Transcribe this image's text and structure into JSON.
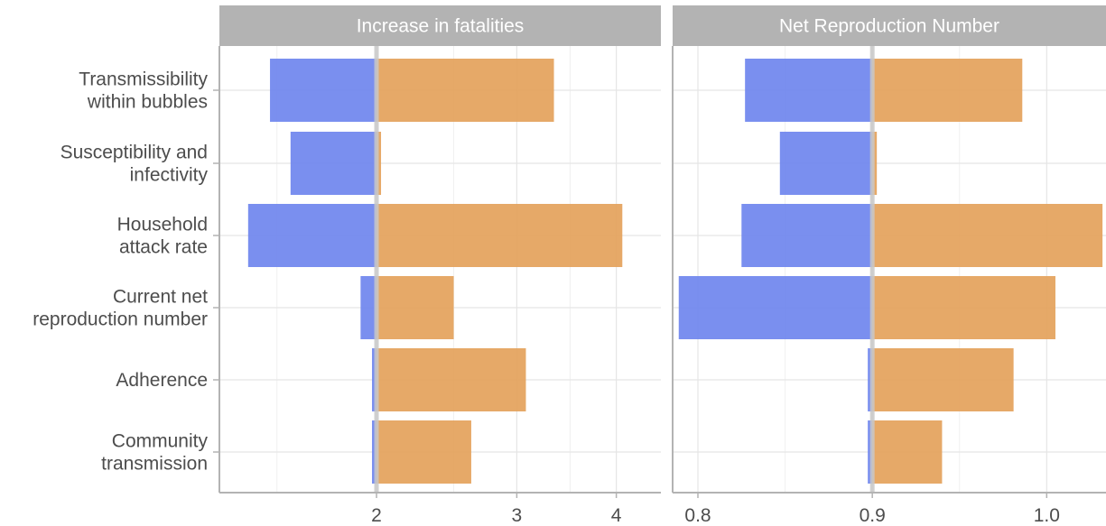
{
  "chart_data": {
    "type": "bar",
    "orientation": "horizontal",
    "grid": true,
    "legend": "none",
    "categories": [
      [
        "Transmissibility",
        "within bubbles"
      ],
      [
        "Susceptibility and",
        "infectivity"
      ],
      [
        "Household",
        "attack rate"
      ],
      [
        "Current net",
        "reproduction number"
      ],
      [
        "Adherence"
      ],
      [
        "Community",
        "transmission"
      ]
    ],
    "colors": {
      "low": "#6f86ee",
      "high": "#e4a25b",
      "strip": "#b3b3b3",
      "grid": "#e5e5e5",
      "axis": "#b3b3b3",
      "baseline": "#c8c8c8"
    },
    "panels": [
      {
        "title": "Increase in fatalities",
        "scale": "log",
        "baseline": 2,
        "xlim": [
          1.27,
          4.55
        ],
        "ticks": [
          2,
          3,
          4
        ],
        "tick_labels": [
          "2",
          "3",
          "4"
        ],
        "minor_ticks": [
          1.5,
          2.5,
          3.5
        ],
        "low": [
          1.47,
          1.56,
          1.38,
          1.91,
          1.975,
          1.975
        ],
        "high": [
          3.34,
          2.0,
          4.07,
          2.5,
          3.08,
          2.63
        ]
      },
      {
        "title": "Net Reproduction Number",
        "scale": "linear",
        "baseline": 0.9,
        "xlim": [
          0.7855,
          1.034
        ],
        "ticks": [
          0.8,
          0.9,
          1.0
        ],
        "tick_labels": [
          "0.8",
          "0.9",
          "1.0"
        ],
        "minor_ticks": [
          0.85,
          0.95
        ],
        "low": [
          0.827,
          0.847,
          0.825,
          0.789,
          0.899,
          0.899
        ],
        "high": [
          0.986,
          0.9,
          1.032,
          1.005,
          0.981,
          0.94
        ]
      }
    ]
  }
}
